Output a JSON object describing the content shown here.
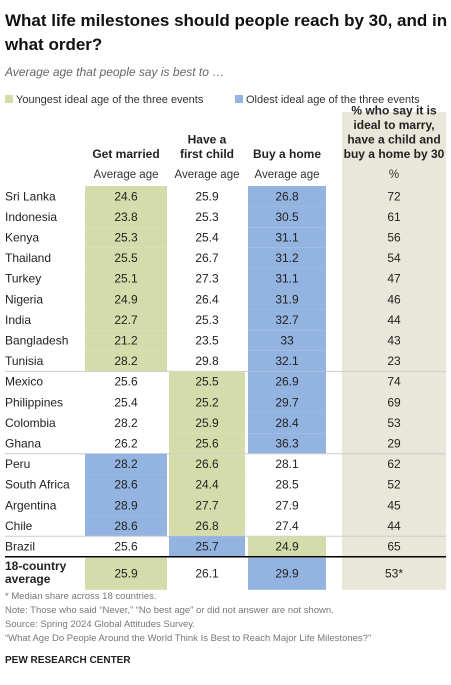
{
  "header": {
    "title": [
      "What life milestones should people reach by 30, and in",
      "what order?"
    ],
    "subtitle": "Average age that people say is best to …"
  },
  "legend": {
    "youngest": {
      "label": "Youngest ideal age of the three events",
      "color": "#d4dcab"
    },
    "oldest": {
      "label": "Oldest ideal age of the three events",
      "color": "#93b3e1"
    }
  },
  "table": {
    "pct_color": "#e9e7d9",
    "columns": {
      "married": {
        "title": [
          "Get married"
        ],
        "sub": "Average age"
      },
      "child": {
        "title": [
          "Have a",
          "first child"
        ],
        "sub": "Average age"
      },
      "home": {
        "title": [
          "Buy a home"
        ],
        "sub": "Average age"
      },
      "pct": {
        "title": [
          "% who say it is",
          "ideal to marry,",
          "have a child and",
          "buy a home by 30"
        ],
        "sub": "%"
      }
    },
    "groups": [
      {
        "highlight": {
          "married": "youngest",
          "home": "oldest"
        },
        "rows": [
          {
            "country": "Sri Lanka",
            "married": 24.6,
            "child": 25.9,
            "home": 26.8,
            "pct": 72
          },
          {
            "country": "Indonesia",
            "married": 23.8,
            "child": 25.3,
            "home": 30.5,
            "pct": 61
          },
          {
            "country": "Kenya",
            "married": 25.3,
            "child": 25.4,
            "home": 31.1,
            "pct": 56
          },
          {
            "country": "Thailand",
            "married": 25.5,
            "child": 26.7,
            "home": 31.2,
            "pct": 54
          },
          {
            "country": "Turkey",
            "married": 25.1,
            "child": 27.3,
            "home": 31.1,
            "pct": 47
          },
          {
            "country": "Nigeria",
            "married": 24.9,
            "child": 26.4,
            "home": 31.9,
            "pct": 46
          },
          {
            "country": "India",
            "married": 22.7,
            "child": 25.3,
            "home": 32.7,
            "pct": 44
          },
          {
            "country": "Bangladesh",
            "married": 21.2,
            "child": 23.5,
            "home": 33.0,
            "pct": 43
          },
          {
            "country": "Tunisia",
            "married": 28.2,
            "child": 29.8,
            "home": 32.1,
            "pct": 23
          }
        ]
      },
      {
        "highlight": {
          "child": "youngest",
          "home": "oldest"
        },
        "rows": [
          {
            "country": "Mexico",
            "married": 25.6,
            "child": 25.5,
            "home": 26.9,
            "pct": 74
          },
          {
            "country": "Philippines",
            "married": 25.4,
            "child": 25.2,
            "home": 29.7,
            "pct": 69
          },
          {
            "country": "Colombia",
            "married": 28.2,
            "child": 25.9,
            "home": 28.4,
            "pct": 53
          },
          {
            "country": "Ghana",
            "married": 26.2,
            "child": 25.6,
            "home": 36.3,
            "pct": 29
          }
        ]
      },
      {
        "highlight": {
          "child": "youngest",
          "married": "oldest"
        },
        "rows": [
          {
            "country": "Peru",
            "married": 28.2,
            "child": 26.6,
            "home": 28.1,
            "pct": 62
          },
          {
            "country": "South Africa",
            "married": 28.6,
            "child": 24.4,
            "home": 28.5,
            "pct": 52
          },
          {
            "country": "Argentina",
            "married": 28.9,
            "child": 27.7,
            "home": 27.9,
            "pct": 45
          },
          {
            "country": "Chile",
            "married": 28.6,
            "child": 26.8,
            "home": 27.4,
            "pct": 44
          }
        ]
      },
      {
        "highlight": {
          "home": "youngest",
          "child": "oldest"
        },
        "rows": [
          {
            "country": "Brazil",
            "married": 25.6,
            "child": 25.7,
            "home": 24.9,
            "pct": 65
          }
        ]
      }
    ],
    "average": {
      "highlight": {
        "married": "youngest",
        "home": "oldest"
      },
      "label": [
        "18-country",
        "average"
      ],
      "married": 25.9,
      "child": 26.1,
      "home": 29.9,
      "pct": "53*"
    }
  },
  "footer": {
    "notes": [
      "* Median share across 18 countries.",
      "Note: Those who said “Never,” “No best age” or did not answer are not shown.",
      "Source: Spring 2024 Global Attitudes Survey.",
      "“What Age Do People Around the World Think Is Best to Reach Major Life Milestones?”"
    ],
    "org": "PEW RESEARCH CENTER"
  }
}
